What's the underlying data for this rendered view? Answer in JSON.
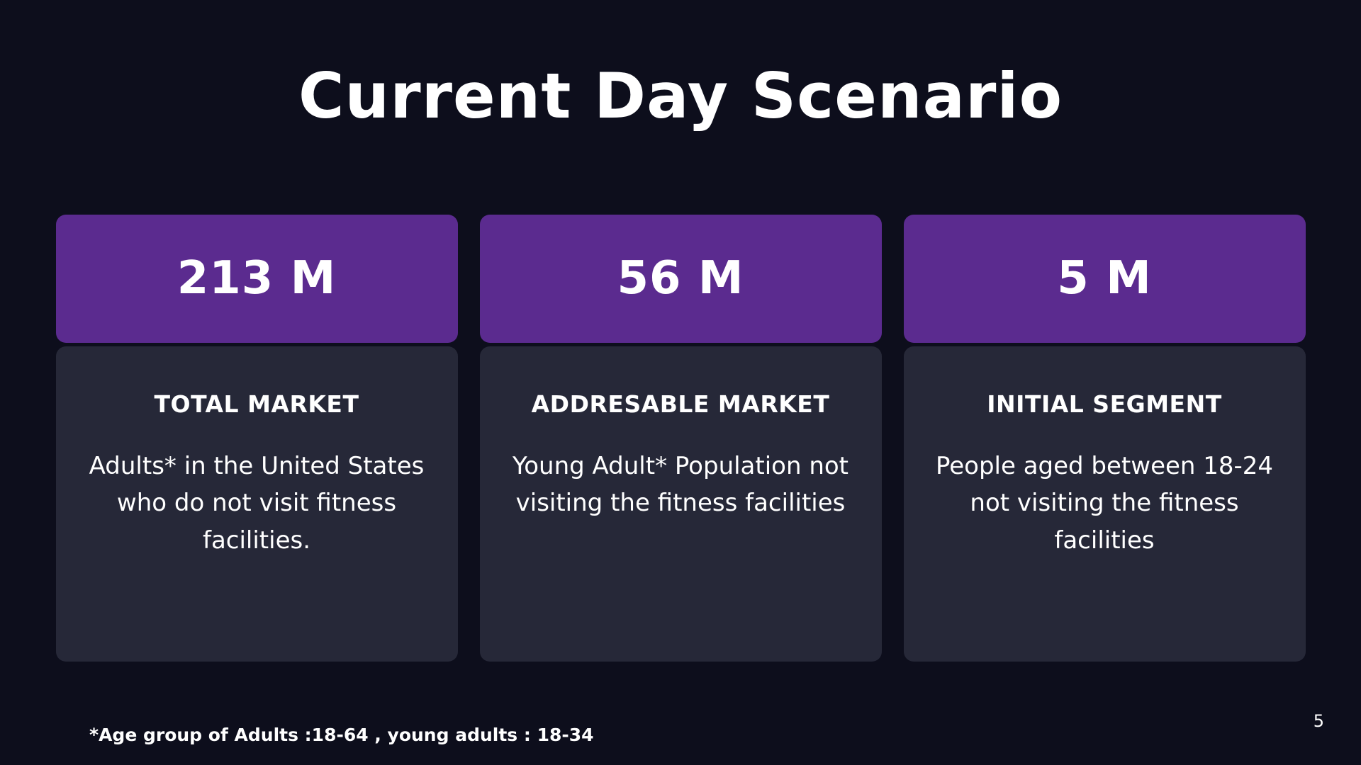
{
  "slide": {
    "title": "Current Day Scenario",
    "cards": [
      {
        "value": "213 M",
        "heading": "TOTAL MARKET",
        "body": "Adults* in the United States who do not visit fitness facilities."
      },
      {
        "value": "56 M",
        "heading": "ADDRESABLE MARKET",
        "body": "Young Adult* Population not visiting the fitness facilities"
      },
      {
        "value": "5 M",
        "heading": "INITIAL SEGMENT",
        "body": "People aged between 18-24 not visiting the fitness facilities"
      }
    ],
    "footnote": "*Age group of Adults :18-64 , young adults : 18-34",
    "page_number": "5",
    "colors": {
      "background": "#0d0e1c",
      "card_header": "#5b2b8f",
      "card_body": "#262838",
      "text": "#ffffff"
    }
  }
}
